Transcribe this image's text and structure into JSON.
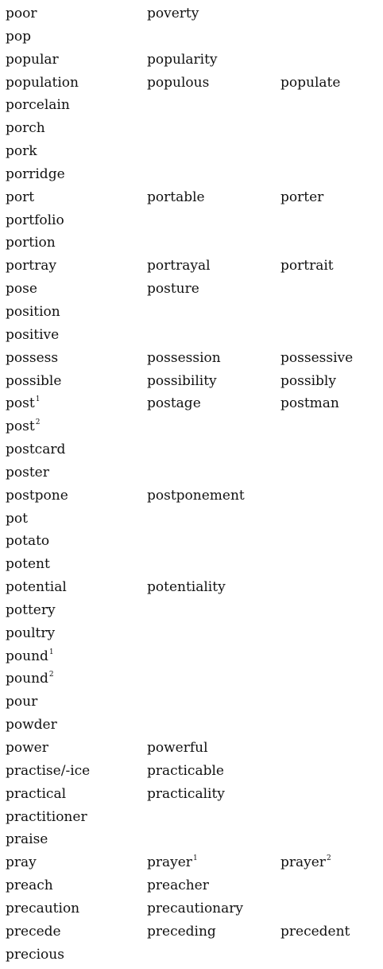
{
  "rows": [
    {
      "words": [
        {
          "text": "poor"
        },
        {
          "text": "poverty"
        }
      ]
    },
    {
      "words": [
        {
          "text": "pop"
        }
      ]
    },
    {
      "words": [
        {
          "text": "popular"
        },
        {
          "text": "popularity"
        }
      ]
    },
    {
      "words": [
        {
          "text": "population"
        },
        {
          "text": "populous"
        },
        {
          "text": "populate"
        }
      ]
    },
    {
      "words": [
        {
          "text": "porcelain"
        }
      ]
    },
    {
      "words": [
        {
          "text": "porch"
        }
      ]
    },
    {
      "words": [
        {
          "text": "pork"
        }
      ]
    },
    {
      "words": [
        {
          "text": "porridge"
        }
      ]
    },
    {
      "words": [
        {
          "text": "port"
        },
        {
          "text": "portable"
        },
        {
          "text": "porter"
        }
      ]
    },
    {
      "words": [
        {
          "text": "portfolio"
        }
      ]
    },
    {
      "words": [
        {
          "text": "portion"
        }
      ]
    },
    {
      "words": [
        {
          "text": "portray"
        },
        {
          "text": "portrayal"
        },
        {
          "text": "portrait"
        }
      ]
    },
    {
      "words": [
        {
          "text": "pose"
        },
        {
          "text": "posture"
        }
      ]
    },
    {
      "words": [
        {
          "text": "position"
        }
      ]
    },
    {
      "words": [
        {
          "text": "positive"
        }
      ]
    },
    {
      "words": [
        {
          "text": "possess"
        },
        {
          "text": "possession"
        },
        {
          "text": "possessive"
        }
      ]
    },
    {
      "words": [
        {
          "text": "possible"
        },
        {
          "text": "possibility"
        },
        {
          "text": "possibly"
        }
      ]
    },
    {
      "words": [
        {
          "text": "post",
          "sup": "1"
        },
        {
          "text": "postage"
        },
        {
          "text": "postman"
        }
      ]
    },
    {
      "words": [
        {
          "text": "post",
          "sup": "2"
        }
      ]
    },
    {
      "words": [
        {
          "text": "postcard"
        }
      ]
    },
    {
      "words": [
        {
          "text": "poster"
        }
      ]
    },
    {
      "words": [
        {
          "text": "postpone"
        },
        {
          "text": "postponement"
        }
      ]
    },
    {
      "words": [
        {
          "text": "pot"
        }
      ]
    },
    {
      "words": [
        {
          "text": "potato"
        }
      ]
    },
    {
      "words": [
        {
          "text": "potent"
        }
      ]
    },
    {
      "words": [
        {
          "text": "potential"
        },
        {
          "text": "potentiality"
        }
      ]
    },
    {
      "words": [
        {
          "text": "pottery"
        }
      ]
    },
    {
      "words": [
        {
          "text": "poultry"
        }
      ]
    },
    {
      "words": [
        {
          "text": "pound",
          "sup": "1"
        }
      ]
    },
    {
      "words": [
        {
          "text": "pound",
          "sup": "2"
        }
      ]
    },
    {
      "words": [
        {
          "text": "pour"
        }
      ]
    },
    {
      "words": [
        {
          "text": "powder"
        }
      ]
    },
    {
      "words": [
        {
          "text": "power"
        },
        {
          "text": "powerful"
        }
      ]
    },
    {
      "words": [
        {
          "text": "practise/-ice"
        },
        {
          "text": "practicable"
        }
      ]
    },
    {
      "words": [
        {
          "text": "practical"
        },
        {
          "text": "practicality"
        }
      ]
    },
    {
      "words": [
        {
          "text": "practitioner"
        }
      ]
    },
    {
      "words": [
        {
          "text": "praise"
        }
      ]
    },
    {
      "words": [
        {
          "text": "pray"
        },
        {
          "text": "prayer",
          "sup": "1"
        },
        {
          "text": "prayer",
          "sup": "2"
        }
      ]
    },
    {
      "words": [
        {
          "text": "preach"
        },
        {
          "text": "preacher"
        }
      ]
    },
    {
      "words": [
        {
          "text": "precaution"
        },
        {
          "text": "precautionary"
        }
      ]
    },
    {
      "words": [
        {
          "text": "precede"
        },
        {
          "text": "preceding"
        },
        {
          "text": "precedent"
        }
      ]
    },
    {
      "words": [
        {
          "text": "precious"
        }
      ]
    }
  ]
}
